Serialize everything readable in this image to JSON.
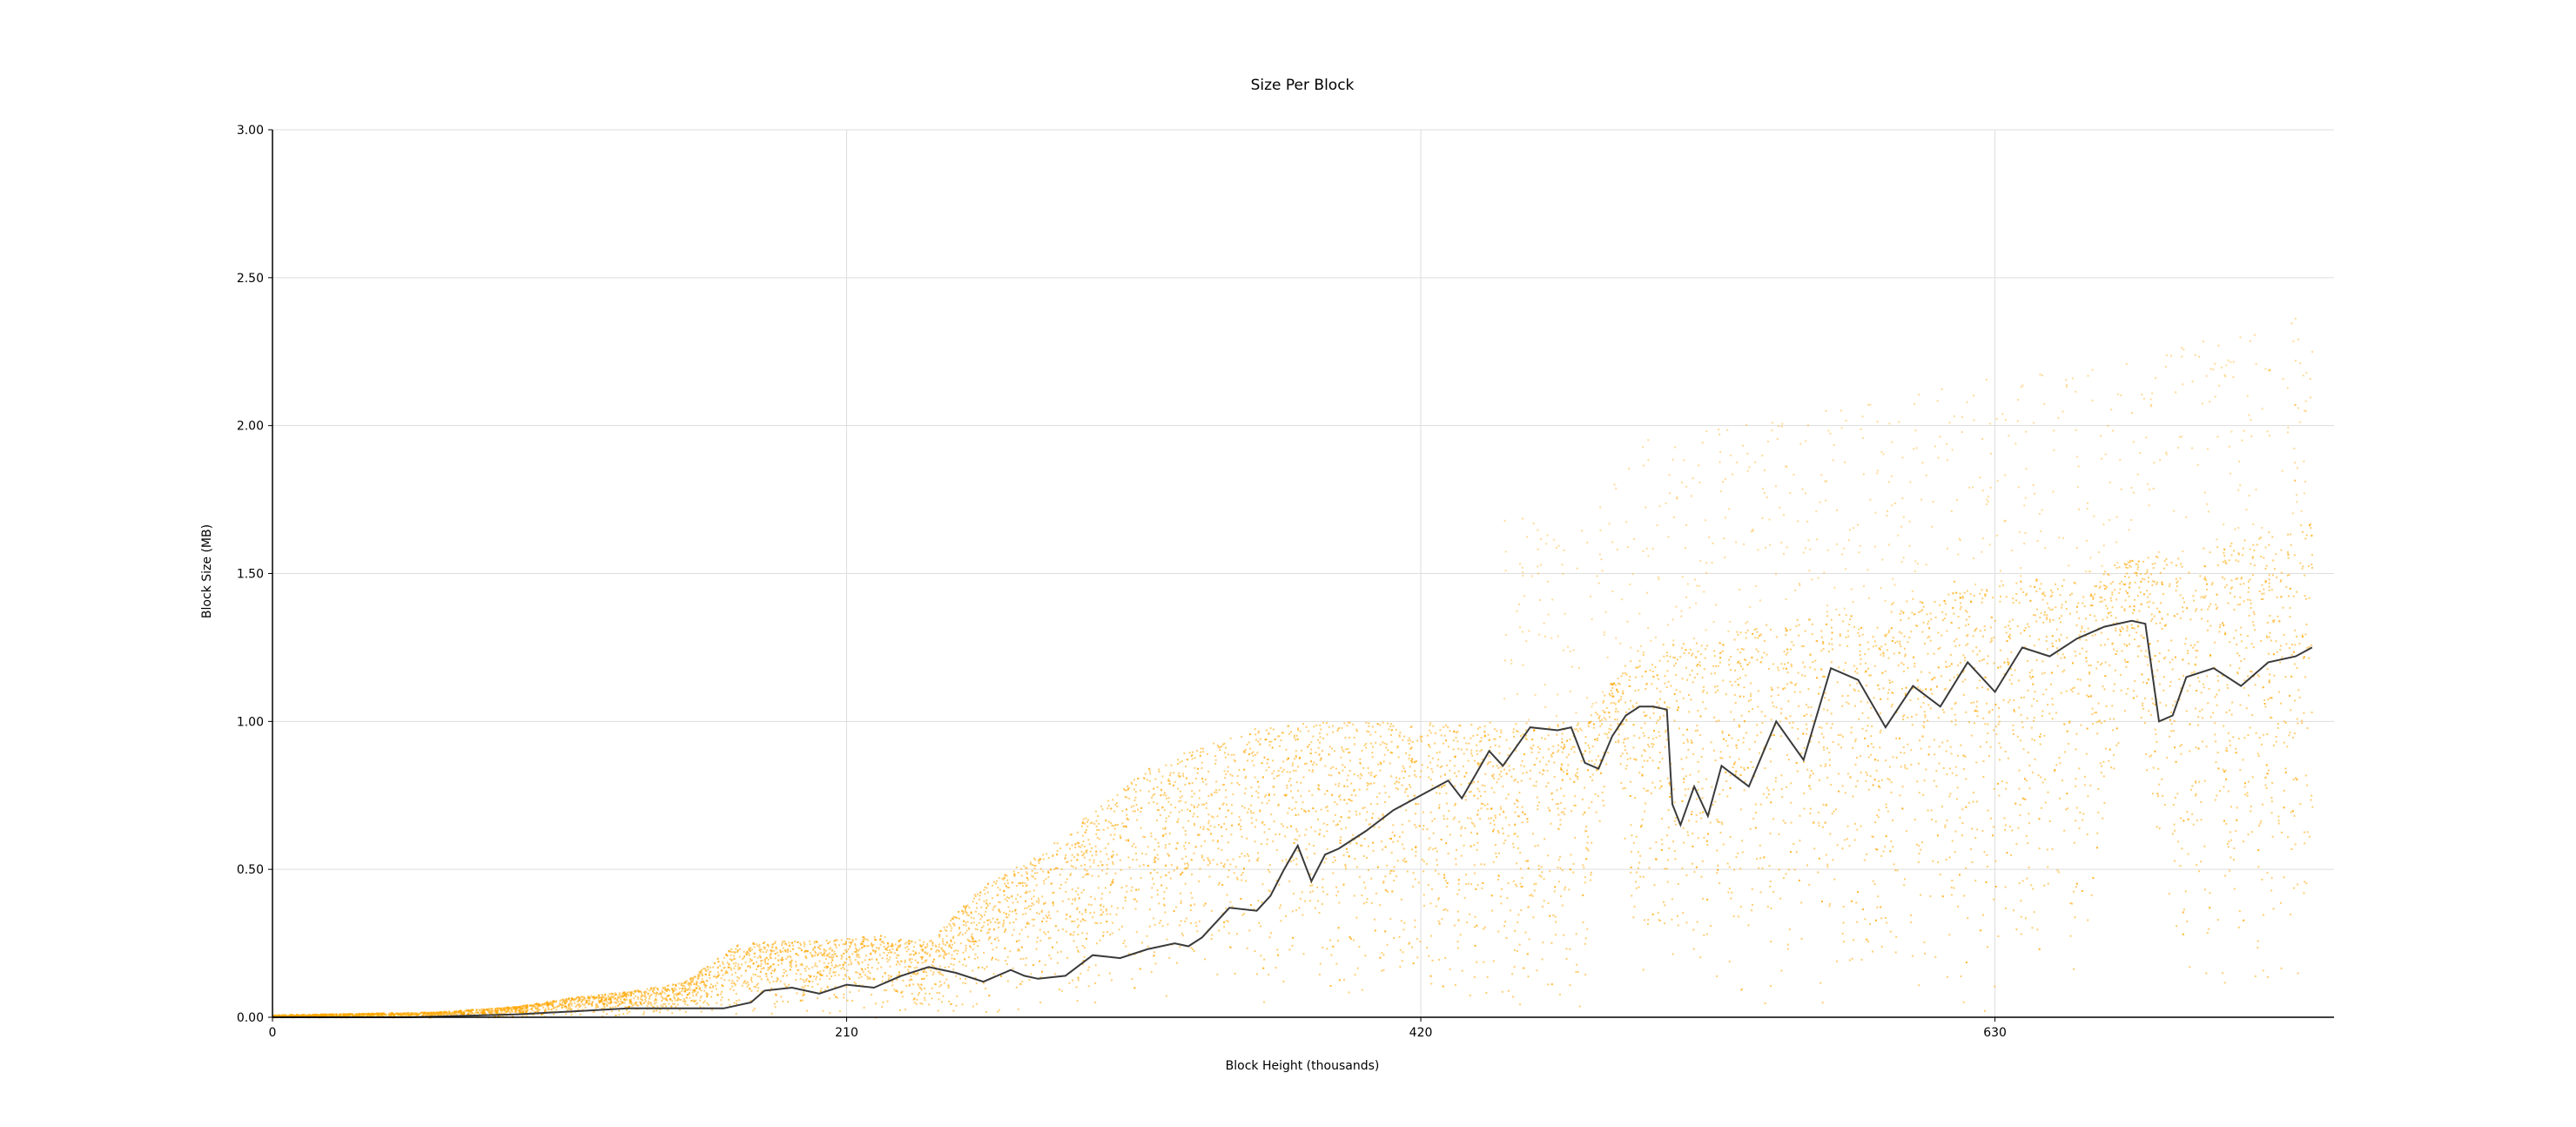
{
  "chart_data": {
    "type": "scatter",
    "title": "Size Per Block",
    "xlabel": "Block Height (thousands)",
    "ylabel": "Block Size (MB)",
    "xlim": [
      0,
      754
    ],
    "ylim": [
      0,
      3.0
    ],
    "xticks": [
      0,
      210,
      420,
      630
    ],
    "xtick_labels": [
      "0",
      "210",
      "420",
      "630"
    ],
    "yticks": [
      0,
      0.5,
      1.0,
      1.5,
      2.0,
      2.5,
      3.0
    ],
    "ytick_labels": [
      "0.00",
      "0.50",
      "1.00",
      "1.50",
      "2.00",
      "2.50",
      "3.00"
    ],
    "grid": true,
    "colors": {
      "scatter": "#FFA500",
      "moving_average": "#3a3a3a",
      "grid": "#dddddd",
      "axis": "#000000"
    },
    "series": [
      {
        "kind": "scatter-band",
        "description_free": true,
        "x": [
          0,
          60,
          90,
          110,
          130,
          150,
          170,
          180,
          200,
          220,
          240,
          260,
          280,
          300,
          320,
          340,
          360,
          380,
          400,
          420,
          440,
          460,
          480,
          490,
          500,
          520,
          540,
          560,
          580,
          600,
          620,
          640,
          660,
          680,
          700,
          720,
          746
        ],
        "low": [
          0,
          0,
          0,
          0,
          0,
          0,
          0,
          0,
          0,
          0,
          0,
          0,
          0,
          0,
          0,
          0,
          0,
          0,
          0,
          0,
          0,
          0,
          0,
          0.98,
          0,
          0,
          0,
          0,
          0,
          0,
          0,
          0,
          0,
          0.98,
          0,
          0,
          0
        ],
        "high": [
          0.01,
          0.02,
          0.04,
          0.07,
          0.09,
          0.12,
          0.25,
          0.26,
          0.26,
          0.28,
          0.26,
          0.45,
          0.55,
          0.7,
          0.85,
          0.92,
          0.98,
          1.0,
          1.0,
          1.0,
          1.0,
          1.0,
          1.0,
          1.15,
          1.25,
          1.28,
          1.32,
          1.35,
          1.38,
          1.42,
          1.45,
          1.48,
          1.5,
          1.55,
          1.58,
          1.62,
          1.68
        ]
      },
      {
        "kind": "moving-average",
        "x": [
          0,
          50,
          90,
          110,
          130,
          150,
          165,
          175,
          180,
          190,
          200,
          210,
          220,
          230,
          240,
          250,
          260,
          270,
          275,
          280,
          290,
          300,
          310,
          320,
          330,
          335,
          340,
          345,
          350,
          360,
          365,
          370,
          375,
          380,
          385,
          390,
          400,
          410,
          420,
          430,
          435,
          440,
          445,
          450,
          460,
          470,
          475,
          480,
          485,
          490,
          495,
          500,
          505,
          510,
          512,
          515,
          520,
          525,
          530,
          540,
          550,
          560,
          570,
          580,
          590,
          600,
          610,
          620,
          630,
          640,
          650,
          660,
          670,
          680,
          685,
          690,
          695,
          700,
          710,
          720,
          730,
          740,
          746
        ],
        "y": [
          0.0,
          0.0,
          0.01,
          0.02,
          0.03,
          0.03,
          0.03,
          0.05,
          0.09,
          0.1,
          0.08,
          0.11,
          0.1,
          0.14,
          0.17,
          0.15,
          0.12,
          0.16,
          0.14,
          0.13,
          0.14,
          0.21,
          0.2,
          0.23,
          0.25,
          0.24,
          0.27,
          0.32,
          0.37,
          0.36,
          0.41,
          0.5,
          0.58,
          0.46,
          0.55,
          0.57,
          0.63,
          0.7,
          0.75,
          0.8,
          0.74,
          0.82,
          0.9,
          0.85,
          0.98,
          0.97,
          0.98,
          0.86,
          0.84,
          0.95,
          1.02,
          1.05,
          1.05,
          1.04,
          0.72,
          0.65,
          0.78,
          0.68,
          0.85,
          0.78,
          1.0,
          0.87,
          1.18,
          1.14,
          0.98,
          1.12,
          1.05,
          1.2,
          1.1,
          1.25,
          1.22,
          1.28,
          1.32,
          1.34,
          1.33,
          1.0,
          1.02,
          1.15,
          1.18,
          1.12,
          1.2,
          1.22,
          1.25
        ]
      }
    ]
  }
}
